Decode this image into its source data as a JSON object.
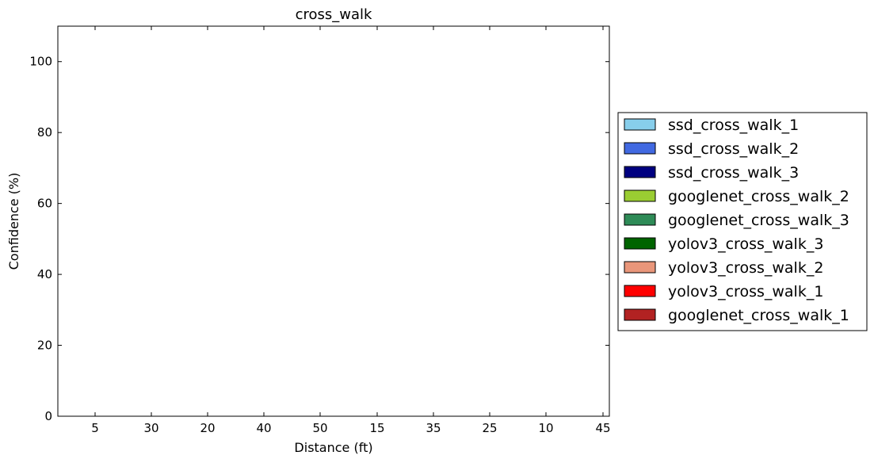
{
  "chart_data": {
    "type": "bar",
    "title": "cross_walk",
    "xlabel": "Distance (ft)",
    "ylabel": "Confidence (%)",
    "ylim": [
      0,
      110
    ],
    "yticks": [
      0,
      20,
      40,
      60,
      80,
      100
    ],
    "categories": [
      "5",
      "30",
      "20",
      "40",
      "50",
      "15",
      "35",
      "25",
      "10",
      "45"
    ],
    "series": [
      {
        "name": "ssd_cross_walk_1",
        "color": "#87ceeb",
        "values": [
          0,
          0,
          0,
          0,
          0,
          0,
          0,
          0,
          0,
          0
        ]
      },
      {
        "name": "ssd_cross_walk_2",
        "color": "#4169e1",
        "values": [
          0,
          0,
          0,
          0,
          0,
          0,
          0,
          0,
          0,
          0
        ]
      },
      {
        "name": "ssd_cross_walk_3",
        "color": "#000080",
        "values": [
          0,
          0,
          0,
          0,
          0,
          0,
          0,
          0,
          0,
          0
        ]
      },
      {
        "name": "googlenet_cross_walk_2",
        "color": "#9acd32",
        "values": [
          0,
          0,
          0,
          0,
          0,
          0,
          0,
          0,
          0,
          0
        ]
      },
      {
        "name": "googlenet_cross_walk_3",
        "color": "#2e8b57",
        "values": [
          0,
          0,
          0,
          0,
          0,
          0,
          0,
          0,
          0,
          0
        ]
      },
      {
        "name": "yolov3_cross_walk_3",
        "color": "#006400",
        "values": [
          0,
          0,
          0,
          0,
          0,
          0,
          0,
          0,
          0,
          0
        ]
      },
      {
        "name": "yolov3_cross_walk_2",
        "color": "#e9967a",
        "values": [
          0,
          0,
          0,
          0,
          0,
          0,
          0,
          0,
          0,
          0
        ]
      },
      {
        "name": "yolov3_cross_walk_1",
        "color": "#ff0000",
        "values": [
          0,
          0,
          0,
          0,
          0,
          0,
          0,
          0,
          0,
          0
        ]
      },
      {
        "name": "googlenet_cross_walk_1",
        "color": "#b22222",
        "values": [
          0,
          0,
          0,
          0,
          0,
          0,
          0,
          0,
          0,
          0
        ]
      }
    ],
    "legend": "center-right outside",
    "grid": false
  }
}
